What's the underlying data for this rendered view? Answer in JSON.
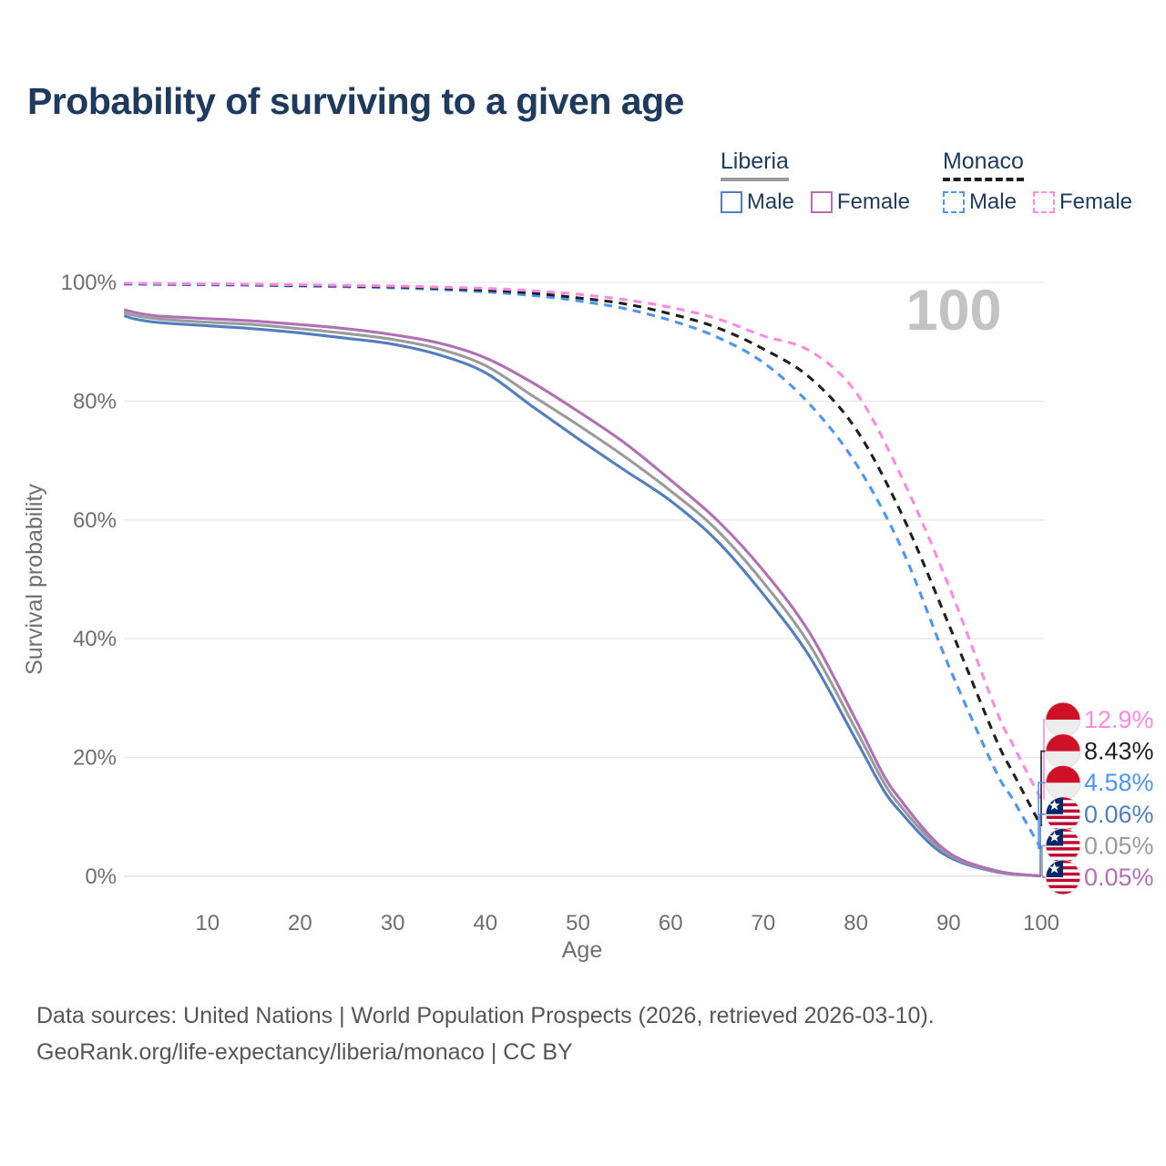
{
  "page": {
    "title": "Probability of surviving to a given age",
    "footer": {
      "line1": "Data sources: United Nations | World Population Prospects (2026, retrieved 2026-03-10).",
      "line2": "GeoRank.org/life-expectancy/liberia/monaco | CC BY"
    }
  },
  "legend": {
    "groups": [
      {
        "label": "Liberia",
        "line_style": "solid",
        "header_underline_color": "#9b9b9b",
        "items": [
          {
            "label": "Male",
            "color": "#527ec0",
            "dashed": false
          },
          {
            "label": "Female",
            "color": "#b16fb5",
            "dashed": false
          }
        ]
      },
      {
        "label": "Monaco",
        "line_style": "dashed",
        "header_underline_color": "#1f1f1f",
        "items": [
          {
            "label": "Male",
            "color": "#4d95f5",
            "dashed": true
          },
          {
            "label": "Female",
            "color": "#fb8ae3",
            "dashed": true
          }
        ]
      }
    ]
  },
  "chart_data": {
    "type": "line",
    "title": "Probability of surviving to a given age",
    "xlabel": "Age",
    "ylabel": "Survival probability",
    "xlim": [
      0,
      100
    ],
    "ylim": [
      0,
      100
    ],
    "grid": "horizontal",
    "age_indicator_watermark": "100",
    "x_ticks": [
      10,
      20,
      30,
      40,
      50,
      60,
      70,
      80,
      90,
      100
    ],
    "y_ticks": [
      {
        "value": 0,
        "label": "0%"
      },
      {
        "value": 20,
        "label": "20%"
      },
      {
        "value": 40,
        "label": "40%"
      },
      {
        "value": 60,
        "label": "60%"
      },
      {
        "value": 80,
        "label": "80%"
      },
      {
        "value": 100,
        "label": "100%"
      }
    ],
    "series": [
      {
        "id": "liberia_male",
        "name": "Liberia Male",
        "color": "#527ec0",
        "dash": null,
        "end_label": "0.06%",
        "points": [
          [
            1,
            94.4
          ],
          [
            2,
            93.9
          ],
          [
            3,
            93.6
          ],
          [
            5,
            93.2
          ],
          [
            10,
            92.7
          ],
          [
            15,
            92.2
          ],
          [
            20,
            91.5
          ],
          [
            25,
            90.6
          ],
          [
            30,
            89.6
          ],
          [
            35,
            87.8
          ],
          [
            40,
            84.8
          ],
          [
            45,
            79.2
          ],
          [
            50,
            73.7
          ],
          [
            55,
            68.4
          ],
          [
            60,
            63.2
          ],
          [
            65,
            56.5
          ],
          [
            70,
            47.5
          ],
          [
            75,
            37.0
          ],
          [
            80,
            23.0
          ],
          [
            83,
            14.5
          ],
          [
            85,
            10.5
          ],
          [
            88,
            5.5
          ],
          [
            90,
            3.3
          ],
          [
            92,
            2.0
          ],
          [
            95,
            0.8
          ],
          [
            97,
            0.35
          ],
          [
            100,
            0.06
          ]
        ]
      },
      {
        "id": "liberia_total",
        "name": "Liberia Both sexes",
        "color": "#9b9b9b",
        "dash": null,
        "end_label": "0.05%",
        "points": [
          [
            1,
            94.9
          ],
          [
            2,
            94.5
          ],
          [
            3,
            94.2
          ],
          [
            5,
            93.8
          ],
          [
            10,
            93.3
          ],
          [
            15,
            92.9
          ],
          [
            20,
            92.2
          ],
          [
            25,
            91.4
          ],
          [
            30,
            90.4
          ],
          [
            35,
            88.8
          ],
          [
            40,
            86.0
          ],
          [
            45,
            81.0
          ],
          [
            50,
            76.0
          ],
          [
            55,
            70.7
          ],
          [
            60,
            64.9
          ],
          [
            65,
            58.3
          ],
          [
            70,
            49.5
          ],
          [
            75,
            39.0
          ],
          [
            80,
            24.7
          ],
          [
            83,
            15.8
          ],
          [
            85,
            11.5
          ],
          [
            88,
            6.2
          ],
          [
            90,
            3.7
          ],
          [
            92,
            2.2
          ],
          [
            95,
            0.9
          ],
          [
            97,
            0.4
          ],
          [
            100,
            0.05
          ]
        ]
      },
      {
        "id": "liberia_female",
        "name": "Liberia Female",
        "color": "#b16fb5",
        "dash": null,
        "end_label": "0.05%",
        "points": [
          [
            1,
            95.4
          ],
          [
            2,
            95.0
          ],
          [
            3,
            94.7
          ],
          [
            5,
            94.3
          ],
          [
            10,
            93.9
          ],
          [
            15,
            93.5
          ],
          [
            20,
            92.9
          ],
          [
            25,
            92.2
          ],
          [
            30,
            91.2
          ],
          [
            35,
            89.8
          ],
          [
            40,
            87.3
          ],
          [
            45,
            83.2
          ],
          [
            50,
            78.3
          ],
          [
            55,
            73.0
          ],
          [
            60,
            66.7
          ],
          [
            65,
            60.0
          ],
          [
            70,
            51.5
          ],
          [
            75,
            41.0
          ],
          [
            80,
            26.3
          ],
          [
            83,
            17.0
          ],
          [
            85,
            12.5
          ],
          [
            88,
            6.8
          ],
          [
            90,
            4.0
          ],
          [
            92,
            2.4
          ],
          [
            95,
            1.0
          ],
          [
            97,
            0.45
          ],
          [
            100,
            0.05
          ]
        ]
      },
      {
        "id": "monaco_male",
        "name": "Monaco Male",
        "color": "#4d95f5",
        "dash": "9 7",
        "end_label": "4.58%",
        "points": [
          [
            1,
            99.7
          ],
          [
            10,
            99.6
          ],
          [
            20,
            99.4
          ],
          [
            30,
            99.1
          ],
          [
            35,
            98.8
          ],
          [
            40,
            98.4
          ],
          [
            45,
            97.8
          ],
          [
            50,
            96.9
          ],
          [
            55,
            95.6
          ],
          [
            60,
            93.6
          ],
          [
            65,
            90.8
          ],
          [
            70,
            86.5
          ],
          [
            75,
            79.5
          ],
          [
            80,
            69.5
          ],
          [
            85,
            55.0
          ],
          [
            90,
            35.5
          ],
          [
            95,
            18.0
          ],
          [
            97,
            12.8
          ],
          [
            100,
            4.58
          ]
        ]
      },
      {
        "id": "monaco_total",
        "name": "Monaco Both sexes",
        "color": "#1f1f1f",
        "dash": "9 7",
        "end_label": "8.43%",
        "points": [
          [
            1,
            99.78
          ],
          [
            10,
            99.68
          ],
          [
            20,
            99.5
          ],
          [
            30,
            99.25
          ],
          [
            35,
            99.0
          ],
          [
            40,
            98.7
          ],
          [
            45,
            98.2
          ],
          [
            50,
            97.4
          ],
          [
            55,
            96.4
          ],
          [
            60,
            94.7
          ],
          [
            65,
            92.4
          ],
          [
            70,
            88.8
          ],
          [
            75,
            84.0
          ],
          [
            80,
            75.3
          ],
          [
            85,
            60.8
          ],
          [
            90,
            42.5
          ],
          [
            95,
            23.5
          ],
          [
            97,
            17.3
          ],
          [
            100,
            8.43
          ]
        ]
      },
      {
        "id": "monaco_female",
        "name": "Monaco Female",
        "color": "#fb8ae3",
        "dash": "9 7",
        "end_label": "12.9%",
        "points": [
          [
            1,
            99.85
          ],
          [
            10,
            99.75
          ],
          [
            20,
            99.6
          ],
          [
            30,
            99.4
          ],
          [
            35,
            99.2
          ],
          [
            40,
            99.0
          ],
          [
            45,
            98.6
          ],
          [
            50,
            98.0
          ],
          [
            55,
            97.1
          ],
          [
            60,
            95.8
          ],
          [
            65,
            93.9
          ],
          [
            70,
            91.0
          ],
          [
            75,
            88.5
          ],
          [
            80,
            81.5
          ],
          [
            85,
            67.0
          ],
          [
            90,
            49.0
          ],
          [
            95,
            28.5
          ],
          [
            97,
            22.0
          ],
          [
            100,
            12.9
          ]
        ]
      }
    ],
    "end_labels": [
      {
        "series": "monaco_female",
        "text": "12.9%",
        "flag": "monaco",
        "color": "#fb8ae3"
      },
      {
        "series": "monaco_total",
        "text": "8.43%",
        "flag": "monaco",
        "color": "#1f1f1f"
      },
      {
        "series": "monaco_male",
        "text": "4.58%",
        "flag": "monaco",
        "color": "#4d95f5"
      },
      {
        "series": "liberia_male",
        "text": "0.06%",
        "flag": "liberia",
        "color": "#527ec0"
      },
      {
        "series": "liberia_total",
        "text": "0.05%",
        "flag": "liberia",
        "color": "#9b9b9b"
      },
      {
        "series": "liberia_female",
        "text": "0.05%",
        "flag": "liberia",
        "color": "#b16fb5"
      }
    ],
    "flag_colors": {
      "monaco_red": "#ce1126",
      "monaco_white": "#ededed",
      "liberia_red": "#bf0a30",
      "liberia_blue": "#002868"
    }
  }
}
